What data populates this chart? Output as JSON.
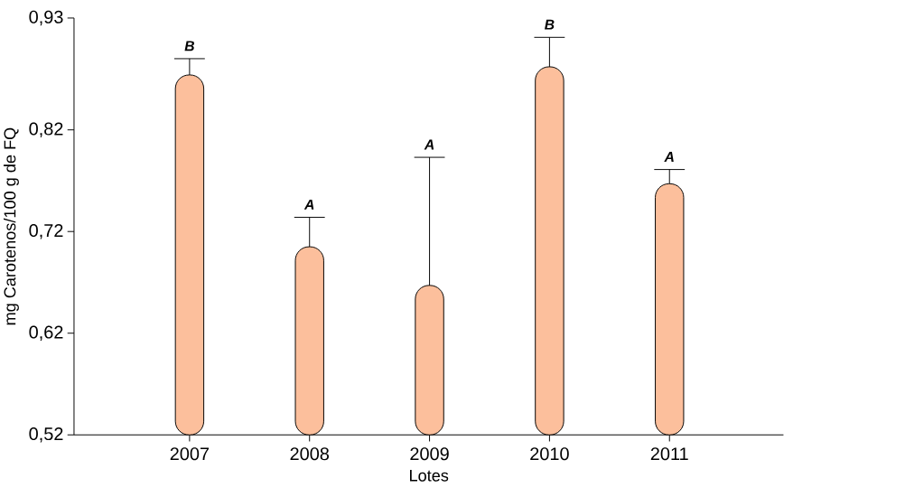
{
  "chart_data": {
    "type": "bar",
    "xlabel": "Lotes",
    "ylabel": "mg Carotenos/100 g de FQ",
    "categories": [
      "2007",
      "2008",
      "2009",
      "2010",
      "2011"
    ],
    "values": [
      0.874,
      0.705,
      0.667,
      0.882,
      0.767
    ],
    "errors": [
      [
        0.874,
        0.89
      ],
      [
        0.705,
        0.734
      ],
      [
        0.667,
        0.793
      ],
      [
        0.882,
        0.911
      ],
      [
        0.767,
        0.781
      ]
    ],
    "color": "#fcbf9c",
    "ylim": [
      0.52,
      0.93
    ],
    "yticks": [
      {
        "value": 0.52,
        "label": "0,52"
      },
      {
        "value": 0.62,
        "label": "0,62"
      },
      {
        "value": 0.72,
        "label": "0,72"
      },
      {
        "value": 0.82,
        "label": "0,82"
      },
      {
        "value": 0.93,
        "label": "0,93"
      }
    ],
    "annotations": [
      "B",
      "A",
      "A",
      "B",
      "A"
    ]
  }
}
